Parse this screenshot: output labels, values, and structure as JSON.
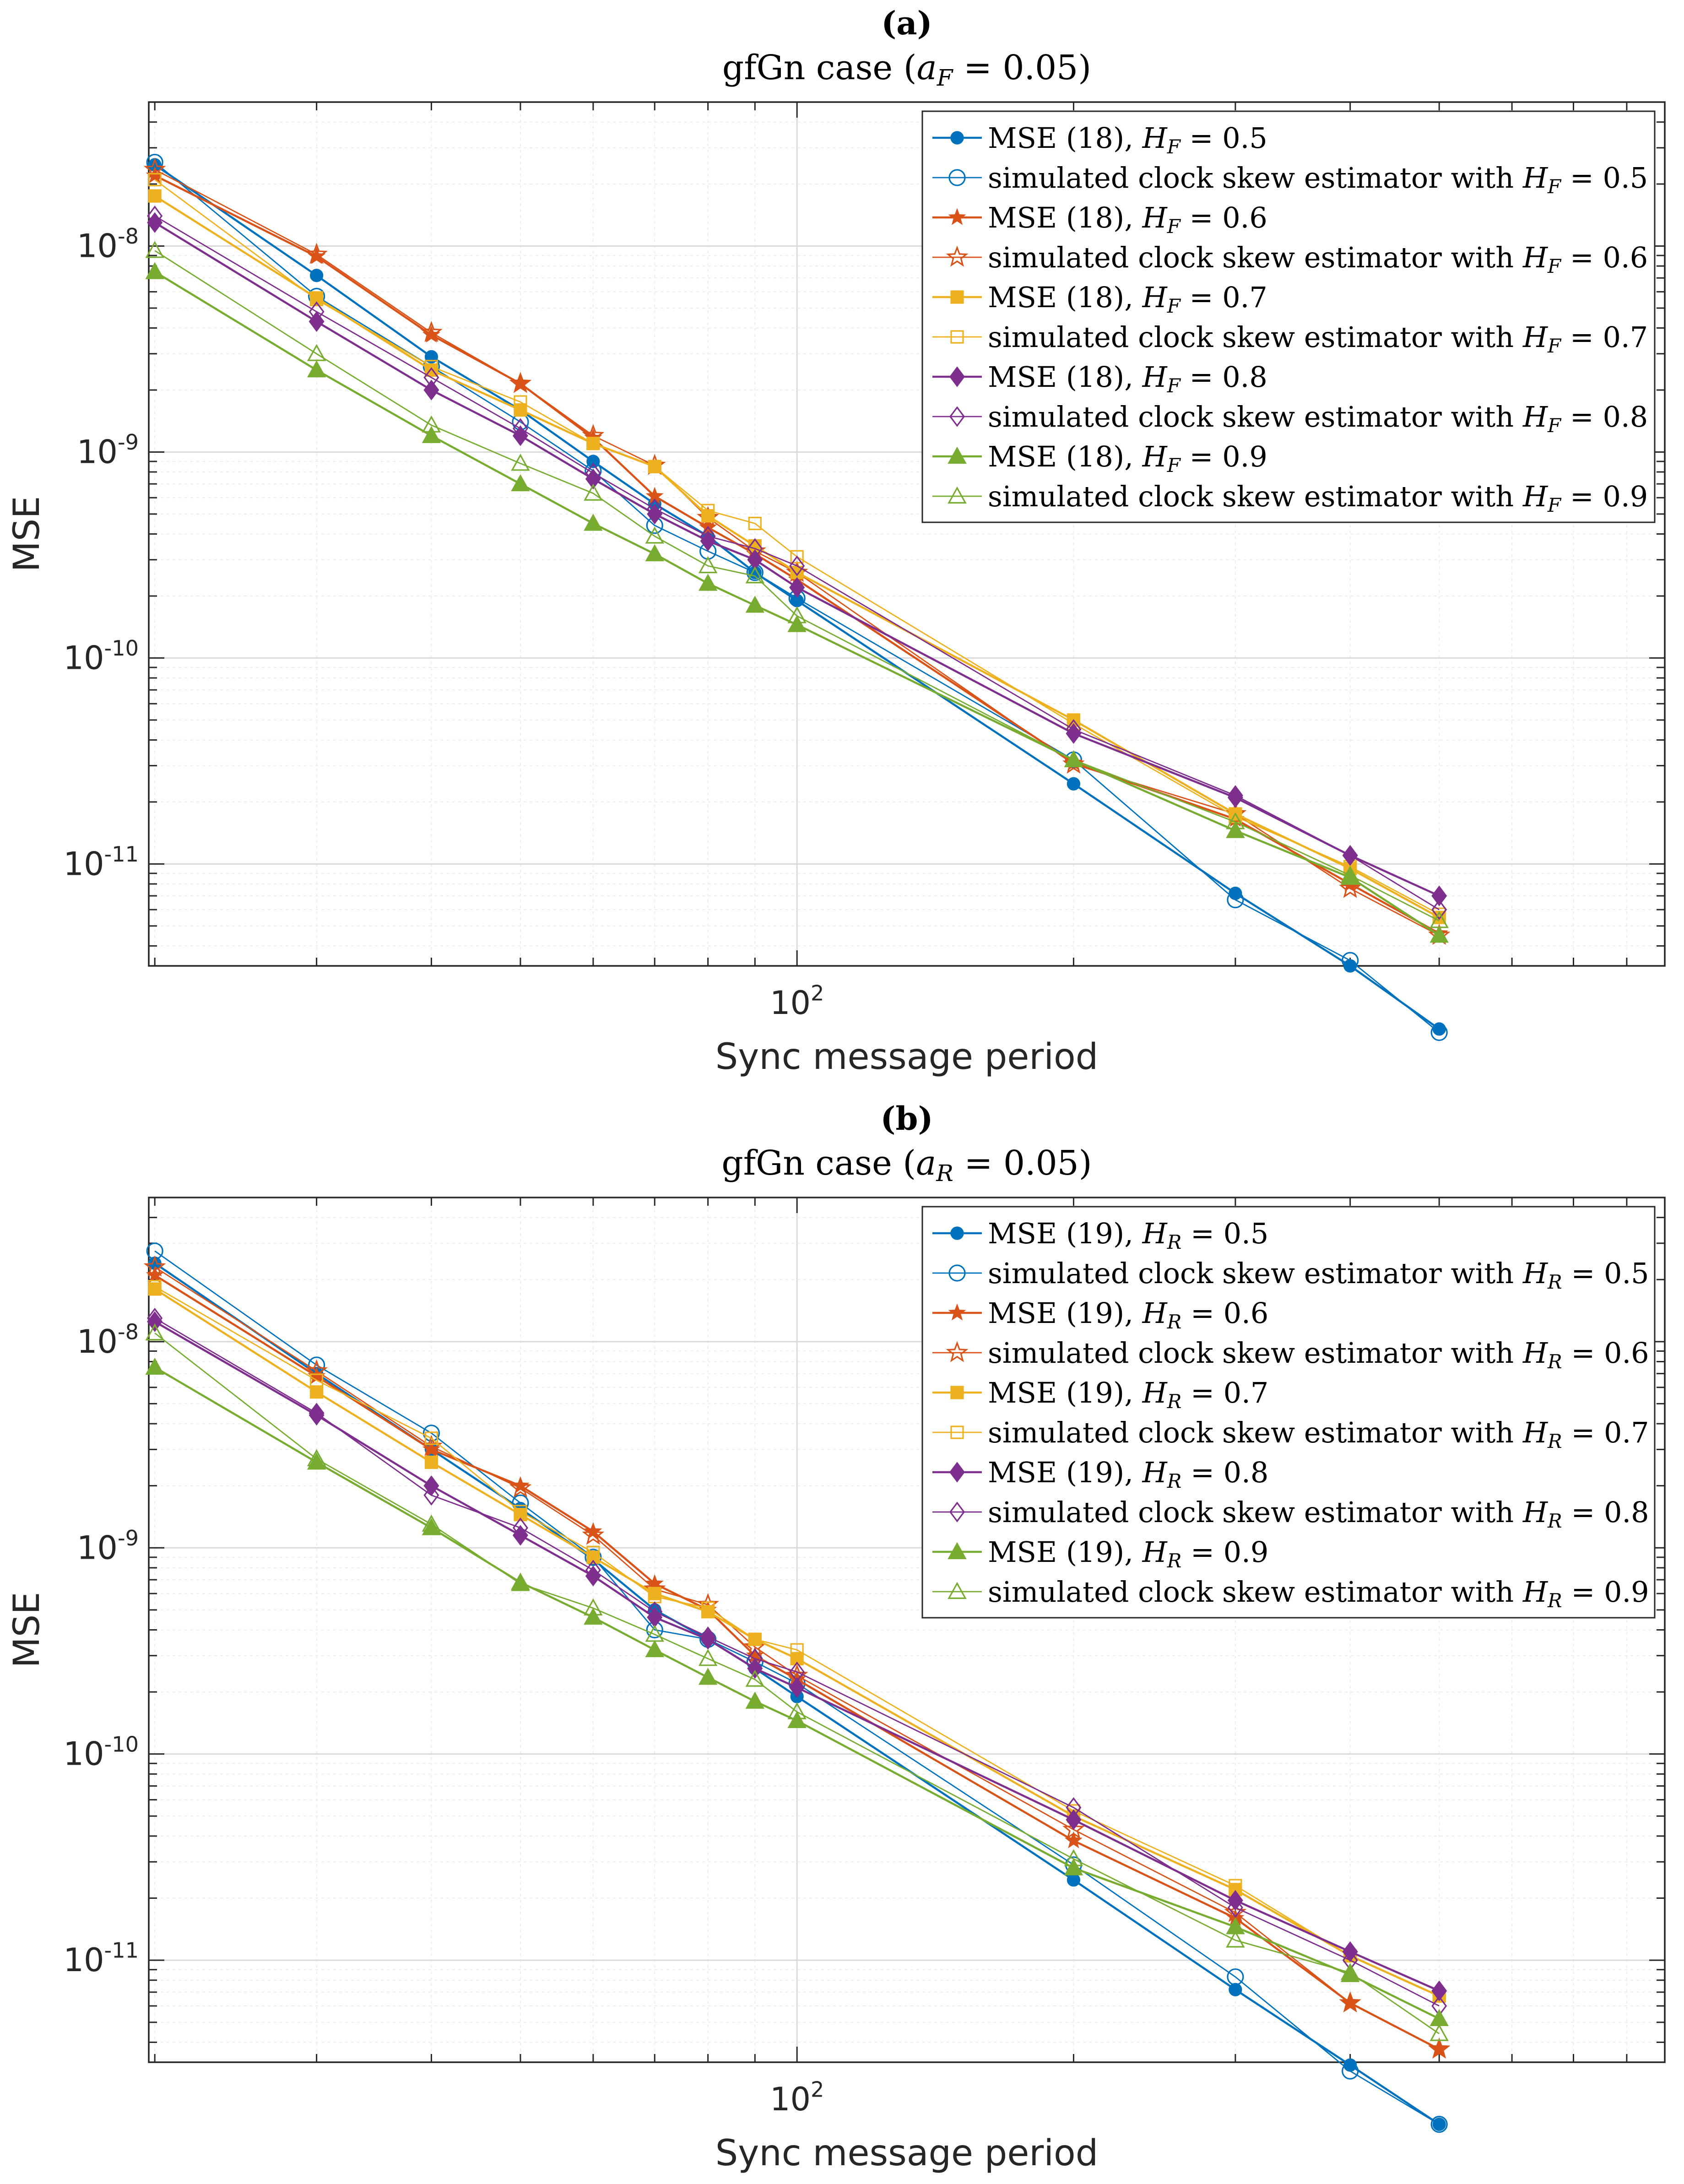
{
  "chart_data": [
    {
      "type": "line",
      "panel_label": "(a)",
      "title": "gfGn case (a_F = 0.05)",
      "title_parts": {
        "prefix": "gfGn case (",
        "var": "a",
        "sub": "F",
        "suffix": " = 0.05)"
      },
      "xlabel": "Sync message period",
      "ylabel": "MSE",
      "x_scale": "log",
      "y_scale": "log",
      "xlim": [
        19.7,
        880
      ],
      "ylim": [
        3.2e-12,
        5e-08
      ],
      "x_tick_label": "10^2",
      "y_tick_labels": [
        "10^-8",
        "10^-9",
        "10^-10",
        "10^-11"
      ],
      "grid": true,
      "legend_position": "top-right",
      "x": [
        20,
        30,
        40,
        50,
        60,
        70,
        80,
        90,
        100,
        200,
        300,
        400,
        500
      ],
      "series": [
        {
          "name": "MSE (18), H_F = 0.5",
          "legend": {
            "pre": "MSE (18), ",
            "var": "H",
            "sub": "F",
            "post": " = 0.5"
          },
          "color": "#0072BD",
          "marker": "dot",
          "filled": true,
          "values": [
            2.48e-08,
            7.2e-09,
            2.9e-09,
            1.6e-09,
            9e-10,
            5.6e-10,
            3.9e-10,
            2.6e-10,
            1.9e-10,
            2.45e-11,
            7.2e-12,
            3.2e-12,
            1.58e-12
          ]
        },
        {
          "name": "simulated clock skew estimator with H_F = 0.5",
          "legend": {
            "pre": "simulated clock skew estimator with ",
            "var": "H",
            "sub": "F",
            "post": " = 0.5"
          },
          "color": "#0072BD",
          "marker": "circle",
          "filled": false,
          "values": [
            2.55e-08,
            5.7e-09,
            2.6e-09,
            1.4e-09,
            8.1e-10,
            4.4e-10,
            3.3e-10,
            2.6e-10,
            1.95e-10,
            3.2e-11,
            6.7e-12,
            3.4e-12,
            1.52e-12
          ]
        },
        {
          "name": "MSE (18), H_F = 0.6",
          "legend": {
            "pre": "MSE (18), ",
            "var": "H",
            "sub": "F",
            "post": " = 0.6"
          },
          "color": "#D95319",
          "marker": "star",
          "filled": true,
          "values": [
            2.2e-08,
            8.9e-09,
            3.7e-09,
            2.15e-09,
            1.17e-09,
            6.1e-10,
            4.3e-10,
            3.2e-10,
            2.4e-10,
            3.1e-11,
            1.65e-11,
            8e-12,
            4.6e-12
          ]
        },
        {
          "name": "simulated clock skew estimator with H_F = 0.6",
          "legend": {
            "pre": "simulated clock skew estimator with ",
            "var": "H",
            "sub": "F",
            "post": " = 0.6"
          },
          "color": "#D95319",
          "marker": "star",
          "filled": false,
          "values": [
            2.35e-08,
            9.1e-09,
            3.8e-09,
            2.15e-09,
            1.2e-09,
            8.6e-10,
            4.8e-10,
            3.3e-10,
            2.6e-10,
            3.05e-11,
            1.75e-11,
            7.6e-12,
            4.5e-12
          ]
        },
        {
          "name": "MSE (18), H_F = 0.7",
          "legend": {
            "pre": "MSE (18), ",
            "var": "H",
            "sub": "F",
            "post": " = 0.7"
          },
          "color": "#EDB120",
          "marker": "square",
          "filled": true,
          "values": [
            1.75e-08,
            5.6e-09,
            2.5e-09,
            1.6e-09,
            1.1e-09,
            8.5e-10,
            4.9e-10,
            3.5e-10,
            2.6e-10,
            5e-11,
            1.75e-11,
            9.5e-12,
            5.5e-12
          ]
        },
        {
          "name": "simulated clock skew estimator with H_F = 0.7",
          "legend": {
            "pre": "simulated clock skew estimator with ",
            "var": "H",
            "sub": "F",
            "post": " = 0.7"
          },
          "color": "#EDB120",
          "marker": "square",
          "filled": false,
          "values": [
            2.1e-08,
            5.5e-09,
            2.6e-09,
            1.75e-09,
            1.1e-09,
            8.5e-10,
            5.2e-10,
            4.5e-10,
            3.1e-10,
            4.8e-11,
            1.7e-11,
            9.7e-12,
            5.7e-12
          ]
        },
        {
          "name": "MSE (18), H_F = 0.8",
          "legend": {
            "pre": "MSE (18), ",
            "var": "H",
            "sub": "F",
            "post": " = 0.8"
          },
          "color": "#7E2F8E",
          "marker": "diamond",
          "filled": true,
          "values": [
            1.3e-08,
            4.3e-09,
            2e-09,
            1.2e-09,
            7.4e-10,
            5e-10,
            3.7e-10,
            3e-10,
            2.2e-10,
            4.3e-11,
            2.1e-11,
            1.1e-11,
            7e-12
          ]
        },
        {
          "name": "simulated clock skew estimator with H_F = 0.8",
          "legend": {
            "pre": "simulated clock skew estimator with ",
            "var": "H",
            "sub": "F",
            "post": " = 0.8"
          },
          "color": "#7E2F8E",
          "marker": "diamond",
          "filled": false,
          "values": [
            1.4e-08,
            4.8e-09,
            2.3e-09,
            1.3e-09,
            7.9e-10,
            5.3e-10,
            3.9e-10,
            3.4e-10,
            2.8e-10,
            4.5e-11,
            2.15e-11,
            1.1e-11,
            6e-12
          ]
        },
        {
          "name": "MSE (18), H_F = 0.9",
          "legend": {
            "pre": "MSE (18), ",
            "var": "H",
            "sub": "F",
            "post": " = 0.9"
          },
          "color": "#77AC30",
          "marker": "triangle",
          "filled": true,
          "values": [
            7.5e-09,
            2.5e-09,
            1.2e-09,
            7e-10,
            4.5e-10,
            3.2e-10,
            2.3e-10,
            1.8e-10,
            1.45e-10,
            3.2e-11,
            1.45e-11,
            8.6e-12,
            4.5e-12
          ]
        },
        {
          "name": "simulated clock skew estimator with H_F = 0.9",
          "legend": {
            "pre": "simulated clock skew estimator with ",
            "var": "H",
            "sub": "F",
            "post": " = 0.9"
          },
          "color": "#77AC30",
          "marker": "triangle",
          "filled": false,
          "values": [
            9.5e-09,
            3e-09,
            1.35e-09,
            8.8e-10,
            6.3e-10,
            3.9e-10,
            2.8e-10,
            2.5e-10,
            1.6e-10,
            3.2e-11,
            1.6e-11,
            8.8e-12,
            5.3e-12
          ]
        }
      ]
    },
    {
      "type": "line",
      "panel_label": "(b)",
      "title": "gfGn case (a_R = 0.05)",
      "title_parts": {
        "prefix": "gfGn case (",
        "var": "a",
        "sub": "R",
        "suffix": " = 0.05)"
      },
      "xlabel": "Sync message period",
      "ylabel": "MSE",
      "x_scale": "log",
      "y_scale": "log",
      "xlim": [
        19.7,
        880
      ],
      "ylim": [
        3.2e-12,
        5e-08
      ],
      "x_tick_label": "10^2",
      "y_tick_labels": [
        "10^-8",
        "10^-9",
        "10^-10",
        "10^-11"
      ],
      "grid": true,
      "legend_position": "top-right",
      "x": [
        20,
        30,
        40,
        50,
        60,
        70,
        80,
        90,
        100,
        200,
        300,
        400,
        500
      ],
      "series": [
        {
          "name": "MSE (19), H_R = 0.5",
          "legend": {
            "pre": "MSE (19), ",
            "var": "H",
            "sub": "R",
            "post": " = 0.5"
          },
          "color": "#0072BD",
          "marker": "dot",
          "filled": true,
          "values": [
            2.4e-08,
            7e-09,
            3e-09,
            1.55e-09,
            8.8e-10,
            5e-10,
            3.6e-10,
            2.6e-10,
            1.9e-10,
            2.45e-11,
            7.2e-12,
            3.1e-12,
            1.6e-12
          ]
        },
        {
          "name": "simulated clock skew estimator with H_R = 0.5",
          "legend": {
            "pre": "simulated clock skew estimator with ",
            "var": "H",
            "sub": "R",
            "post": " = 0.5"
          },
          "color": "#0072BD",
          "marker": "circle",
          "filled": false,
          "values": [
            2.75e-08,
            7.7e-09,
            3.6e-09,
            1.65e-09,
            9e-10,
            4e-10,
            3.6e-10,
            2.8e-10,
            2.2e-10,
            2.9e-11,
            8.3e-12,
            2.9e-12,
            1.6e-12
          ]
        },
        {
          "name": "MSE (19), H_R = 0.6",
          "legend": {
            "pre": "MSE (19), ",
            "var": "H",
            "sub": "R",
            "post": " = 0.6"
          },
          "color": "#D95319",
          "marker": "star",
          "filled": true,
          "values": [
            2.1e-08,
            6.8e-09,
            3e-09,
            2e-09,
            1.2e-09,
            6.7e-10,
            5e-10,
            3e-10,
            2.3e-10,
            3.8e-11,
            1.6e-11,
            6.2e-12,
            3.7e-12
          ]
        },
        {
          "name": "simulated clock skew estimator with H_R = 0.6",
          "legend": {
            "pre": "simulated clock skew estimator with ",
            "var": "H",
            "sub": "R",
            "post": " = 0.6"
          },
          "color": "#D95319",
          "marker": "star",
          "filled": false,
          "values": [
            2.3e-08,
            7.2e-09,
            3.1e-09,
            1.95e-09,
            1.15e-09,
            6.3e-10,
            5.3e-10,
            3.3e-10,
            2.4e-10,
            4.3e-11,
            1.7e-11,
            6.2e-12,
            3.7e-12
          ]
        },
        {
          "name": "MSE (19), H_R = 0.7",
          "legend": {
            "pre": "MSE (19), ",
            "var": "H",
            "sub": "R",
            "post": " = 0.7"
          },
          "color": "#EDB120",
          "marker": "square",
          "filled": true,
          "values": [
            1.8e-08,
            5.7e-09,
            2.6e-09,
            1.45e-09,
            9e-10,
            6e-10,
            4.9e-10,
            3.6e-10,
            2.9e-10,
            5e-11,
            2.2e-11,
            1.05e-11,
            6.7e-12
          ]
        },
        {
          "name": "simulated clock skew estimator with H_R = 0.7",
          "legend": {
            "pre": "simulated clock skew estimator with ",
            "var": "H",
            "sub": "R",
            "post": " = 0.7"
          },
          "color": "#EDB120",
          "marker": "square",
          "filled": false,
          "values": [
            1.85e-08,
            6.5e-09,
            3.4e-09,
            1.5e-09,
            9.5e-10,
            5.8e-10,
            5.1e-10,
            3.6e-10,
            3.2e-10,
            5.3e-11,
            2.3e-11,
            1.05e-11,
            6.7e-12
          ]
        },
        {
          "name": "MSE (19), H_R = 0.8",
          "legend": {
            "pre": "MSE (19), ",
            "var": "H",
            "sub": "R",
            "post": " = 0.8"
          },
          "color": "#7E2F8E",
          "marker": "diamond",
          "filled": true,
          "values": [
            1.25e-08,
            4.4e-09,
            2e-09,
            1.15e-09,
            7.3e-10,
            4.6e-10,
            3.6e-10,
            2.6e-10,
            2.1e-10,
            4.8e-11,
            1.95e-11,
            1.1e-11,
            7.1e-12
          ]
        },
        {
          "name": "simulated clock skew estimator with H_R = 0.8",
          "legend": {
            "pre": "simulated clock skew estimator with ",
            "var": "H",
            "sub": "R",
            "post": " = 0.8"
          },
          "color": "#7E2F8E",
          "marker": "diamond",
          "filled": false,
          "values": [
            1.3e-08,
            4.5e-09,
            1.8e-09,
            1.25e-09,
            7.8e-10,
            4.9e-10,
            3.7e-10,
            2.9e-10,
            2.5e-10,
            5.5e-11,
            1.8e-11,
            1e-11,
            6e-12
          ]
        },
        {
          "name": "MSE (19), H_R = 0.9",
          "legend": {
            "pre": "MSE (19), ",
            "var": "H",
            "sub": "R",
            "post": " = 0.9"
          },
          "color": "#77AC30",
          "marker": "triangle",
          "filled": true,
          "values": [
            7.5e-09,
            2.6e-09,
            1.25e-09,
            6.8e-10,
            4.6e-10,
            3.2e-10,
            2.35e-10,
            1.8e-10,
            1.45e-10,
            2.8e-11,
            1.45e-11,
            8.5e-12,
            5.2e-12
          ]
        },
        {
          "name": "simulated clock skew estimator with H_R = 0.9",
          "legend": {
            "pre": "simulated clock skew estimator with ",
            "var": "H",
            "sub": "R",
            "post": " = 0.9"
          },
          "color": "#77AC30",
          "marker": "triangle",
          "filled": false,
          "values": [
            1.1e-08,
            2.7e-09,
            1.3e-09,
            6.7e-10,
            5.1e-10,
            3.8e-10,
            2.9e-10,
            2.3e-10,
            1.6e-10,
            3.1e-11,
            1.25e-11,
            8.7e-12,
            4.4e-12
          ]
        }
      ]
    }
  ]
}
